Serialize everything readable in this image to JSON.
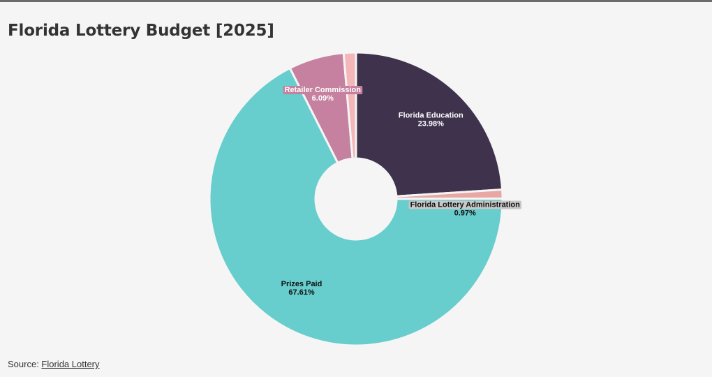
{
  "header": {
    "title": "Florida Lottery Budget [2025]"
  },
  "footer": {
    "source_prefix": "Source: ",
    "source_link": "Florida Lottery"
  },
  "chart_data": {
    "type": "pie",
    "donut": true,
    "title": "Florida Lottery Budget [2025]",
    "slices": [
      {
        "label": "Florida Education",
        "value": 23.98,
        "value_label": "23.98%",
        "color": "#3e324c",
        "text_color": "#ffffff",
        "label_bg": ""
      },
      {
        "label": "Florida Lottery Administration",
        "value": 0.97,
        "value_label": "0.97%",
        "color": "#e8a7a3",
        "text_color": "#111111",
        "label_bg": "#c8c8c8"
      },
      {
        "label": "Prizes Paid",
        "value": 67.61,
        "value_label": "67.61%",
        "color": "#67cdcd",
        "text_color": "#111111",
        "label_bg": ""
      },
      {
        "label": "Retailer Commission",
        "value": 6.09,
        "value_label": "6.09%",
        "color": "#c5819f",
        "text_color": "#ffffff",
        "label_bg": "#c5819f"
      },
      {
        "label": "",
        "value": 1.35,
        "value_label": "",
        "color": "#f4b6b8",
        "text_color": "#111111",
        "label_bg": ""
      }
    ]
  }
}
